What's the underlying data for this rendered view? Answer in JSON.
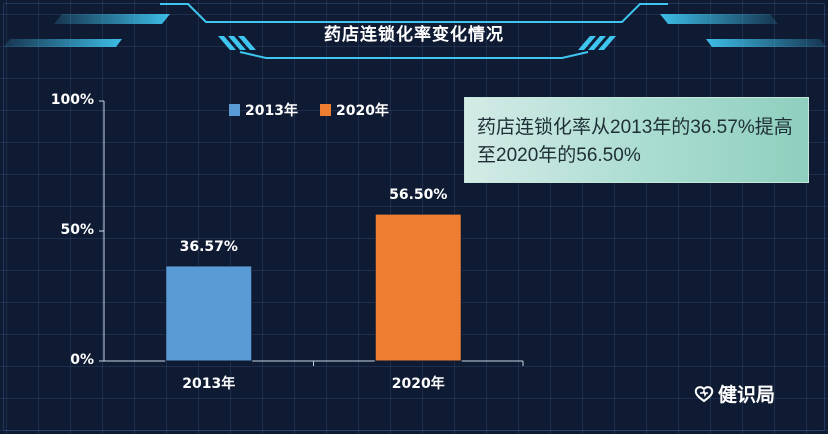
{
  "header": {
    "title": "药店连锁化率变化情况"
  },
  "note": {
    "text": "药店连锁化率从2013年的36.57%提高至2020年的56.50%"
  },
  "brand": {
    "name": "健识局"
  },
  "colors": {
    "series_2013": "#5b9bd5",
    "series_2020": "#ed7d31",
    "background": "#0f1b33",
    "accent": "#3fc6f0"
  },
  "chart_data": {
    "type": "bar",
    "title": "药店连锁化率变化情况",
    "categories": [
      "2013年",
      "2020年"
    ],
    "values": [
      36.57,
      56.5
    ],
    "value_labels": [
      "36.57%",
      "56.50%"
    ],
    "series": [
      {
        "name": "2013年",
        "values": [
          36.57,
          null
        ]
      },
      {
        "name": "2020年",
        "values": [
          null,
          56.5
        ]
      }
    ],
    "yticks": [
      "100%",
      "50%",
      "0%"
    ],
    "ylim": [
      0,
      100
    ],
    "legend_position": "top",
    "grid": false
  }
}
